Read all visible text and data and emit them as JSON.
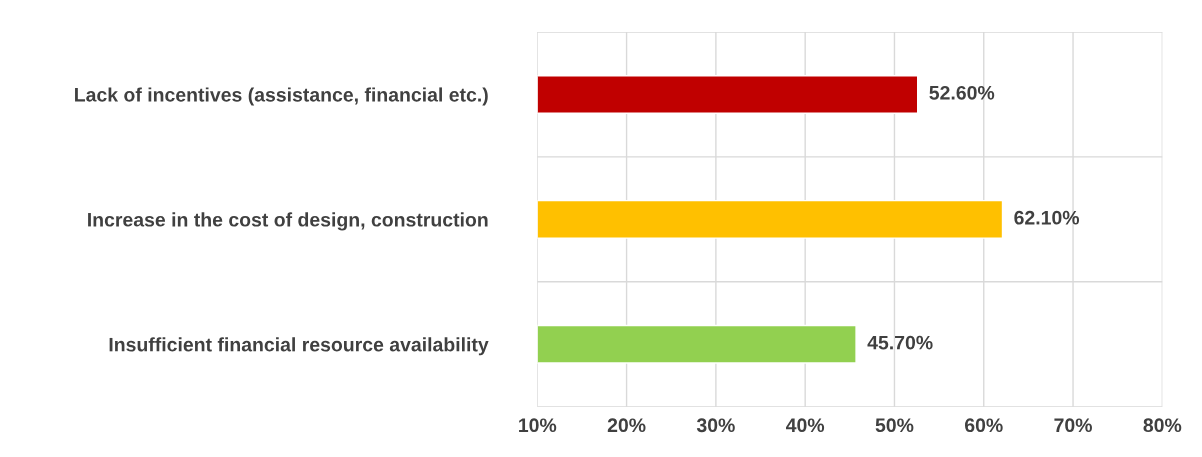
{
  "chart_data": {
    "type": "bar",
    "orientation": "horizontal",
    "categories": [
      "Lack of incentives (assistance, financial etc.)",
      "Increase in the cost of design, construction",
      "Insufficient financial resource availability"
    ],
    "values": [
      52.6,
      62.1,
      45.7
    ],
    "colors": [
      "#c00000",
      "#ffc000",
      "#92d050"
    ],
    "value_labels": [
      "52.60%",
      "62.10%",
      "45.70%"
    ],
    "xlim": [
      10,
      80
    ],
    "xticks": [
      {
        "value": 10,
        "label": "10%"
      },
      {
        "value": 20,
        "label": "20%"
      },
      {
        "value": 30,
        "label": "30%"
      },
      {
        "value": 40,
        "label": "40%"
      },
      {
        "value": 50,
        "label": "50%"
      },
      {
        "value": 60,
        "label": "60%"
      },
      {
        "value": 70,
        "label": "70%"
      },
      {
        "value": 80,
        "label": "80%"
      }
    ],
    "grid": "x"
  }
}
